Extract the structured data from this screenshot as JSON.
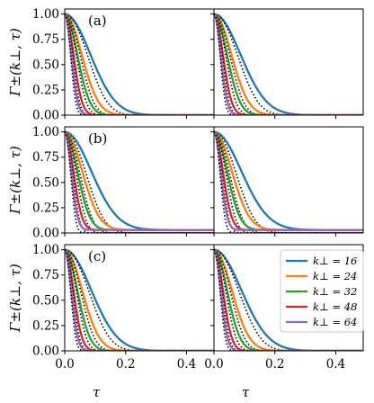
{
  "chart_data": {
    "type": "line",
    "layout": "3x2 grid",
    "xlabel": "τ",
    "ylabel": "Γ±(k⊥, τ)",
    "xlim": [
      0.0,
      0.49
    ],
    "ylim": [
      0.0,
      1.05
    ],
    "x_ticks": [
      "0.0",
      "0.2",
      "0.4"
    ],
    "x_tick_values": [
      0.0,
      0.2,
      0.4
    ],
    "y_ticks": [
      "0.00",
      "0.25",
      "0.50",
      "0.75",
      "1.00"
    ],
    "y_tick_values": [
      0.0,
      0.25,
      0.5,
      0.75,
      1.0
    ],
    "row_labels": [
      "(a)",
      "(b)",
      "(c)"
    ],
    "legend": {
      "placement": "right, bottom-right panel",
      "entries": [
        "k⊥ = 16",
        "k⊥ = 24",
        "k⊥ = 32",
        "k⊥ = 48",
        "k⊥ = 64"
      ]
    },
    "series_colors": [
      "#1f77b4",
      "#ff7f0e",
      "#2ca02c",
      "#d62728",
      "#9467bd"
    ],
    "fit_style": "black dotted",
    "panels": [
      {
        "row": 0,
        "col": 0,
        "decay_times": [
          0.118,
          0.078,
          0.058,
          0.04,
          0.03
        ],
        "fit_times": [
          0.112,
          0.076,
          0.057,
          0.039,
          0.029
        ],
        "tail": 0.0
      },
      {
        "row": 0,
        "col": 1,
        "decay_times": [
          0.122,
          0.08,
          0.06,
          0.041,
          0.031
        ],
        "fit_times": [
          0.116,
          0.078,
          0.058,
          0.04,
          0.03
        ],
        "tail": 0.0
      },
      {
        "row": 1,
        "col": 0,
        "decay_times": [
          0.122,
          0.08,
          0.058,
          0.04,
          0.03
        ],
        "fit_times": [
          0.104,
          0.074,
          0.056,
          0.039,
          0.029
        ],
        "tail": 0.03
      },
      {
        "row": 1,
        "col": 1,
        "decay_times": [
          0.126,
          0.082,
          0.06,
          0.041,
          0.031
        ],
        "fit_times": [
          0.108,
          0.076,
          0.058,
          0.04,
          0.03
        ],
        "tail": 0.03
      },
      {
        "row": 2,
        "col": 0,
        "decay_times": [
          0.122,
          0.08,
          0.058,
          0.04,
          0.03
        ],
        "fit_times": [
          0.118,
          0.078,
          0.057,
          0.039,
          0.029
        ],
        "tail": 0.0
      },
      {
        "row": 2,
        "col": 1,
        "decay_times": [
          0.126,
          0.082,
          0.06,
          0.041,
          0.031
        ],
        "fit_times": [
          0.122,
          0.08,
          0.058,
          0.04,
          0.03
        ],
        "tail": 0.0
      }
    ]
  }
}
